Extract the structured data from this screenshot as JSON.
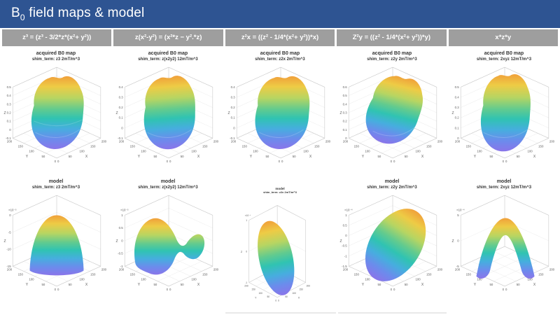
{
  "title": {
    "prefix": "B",
    "sub": "0",
    "rest": " field maps & model"
  },
  "colors": {
    "titlebar_bg": "#2e5492",
    "header_bg": "#9e9e9e",
    "header_text": "#ffffff",
    "page_bg": "#ffffff",
    "axis_line": "#c9c9c9",
    "grid_line": "#ececec",
    "tick_text": "#5a5a5a",
    "surface_top": "#f0a03a",
    "surface_mid": "#30c3b2",
    "surface_bottom": "#8a75ea"
  },
  "headers": [
    "z³  = (z³ - 3/2*z*(x²+ y²))",
    "z(x²-y²) = (x²*z − y².*z)",
    "z²x = ((z² - 1/4*(x²+ y²))*x)",
    "Z²y = ((z² - 1/4*(x²+ y²))*y)",
    "x*z*y"
  ],
  "chart_data": [
    {
      "type": "3d-surface",
      "shape": "head-blob",
      "title": "acquired B0 map",
      "subtitle": "shim_term: z3  2mT/m^3",
      "xlabel": "X",
      "ylabel": "Y",
      "zlabel": "Z",
      "z_exp": "",
      "xlim": [
        0,
        200
      ],
      "ylim": [
        0,
        200
      ],
      "xticks": [
        "0",
        "50",
        "100",
        "150",
        "200"
      ],
      "yticks": [
        "200",
        "150",
        "100",
        "50",
        "0"
      ],
      "zticks": [
        "0.5",
        "0.4",
        "0.3",
        "0.2",
        "0.1",
        "0",
        "-0.1"
      ]
    },
    {
      "type": "3d-surface",
      "shape": "head-blob",
      "title": "acquired B0 map",
      "subtitle": "shim_term: z(x2y2)  12mT/m^3",
      "xlabel": "X",
      "ylabel": "Y",
      "zlabel": "Z",
      "z_exp": "",
      "xlim": [
        0,
        200
      ],
      "ylim": [
        0,
        200
      ],
      "xticks": [
        "0",
        "50",
        "100",
        "150",
        "200"
      ],
      "yticks": [
        "200",
        "150",
        "100",
        "50",
        "0"
      ],
      "zticks": [
        "0.4",
        "0.3",
        "0.2",
        "0.1",
        "0",
        "-0.1"
      ]
    },
    {
      "type": "3d-surface",
      "shape": "head-blob",
      "title": "acquired B0 map",
      "subtitle": "shim_term: z2x  2mT/m^3",
      "xlabel": "X",
      "ylabel": "Y",
      "zlabel": "Z",
      "z_exp": "",
      "xlim": [
        0,
        200
      ],
      "ylim": [
        0,
        200
      ],
      "xticks": [
        "0",
        "50",
        "100",
        "150",
        "200"
      ],
      "yticks": [
        "200",
        "150",
        "100",
        "50",
        "0"
      ],
      "zticks": [
        "0.4",
        "0.3",
        "0.2",
        "0.1",
        "0",
        "-0.1"
      ]
    },
    {
      "type": "3d-surface",
      "shape": "head-blob-tilted",
      "title": "acquired B0 map",
      "subtitle": "shim_term: z2y  2mT/m^3",
      "xlabel": "X",
      "ylabel": "Y",
      "zlabel": "Z",
      "z_exp": "",
      "xlim": [
        0,
        200
      ],
      "ylim": [
        0,
        200
      ],
      "xticks": [
        "0",
        "50",
        "100",
        "150",
        "200"
      ],
      "yticks": [
        "200",
        "150",
        "100",
        "50",
        "0"
      ],
      "zticks": [
        "0.6",
        "0.5",
        "0.4",
        "0.3",
        "0.2",
        "0.1",
        "0"
      ]
    },
    {
      "type": "3d-surface",
      "shape": "head-blob-tall",
      "title": "acquired B0 map",
      "subtitle": "shim_term: 2xyz  12mT/m^3",
      "xlabel": "X",
      "ylabel": "Y",
      "zlabel": "Z",
      "z_exp": "",
      "xlim": [
        0,
        200
      ],
      "ylim": [
        0,
        200
      ],
      "xticks": [
        "0",
        "50",
        "100",
        "150",
        "200"
      ],
      "yticks": [
        "200",
        "150",
        "100",
        "50",
        "0"
      ],
      "zticks": [
        "0.5",
        "0.4",
        "0.3",
        "0.2",
        "0.1",
        "0"
      ]
    },
    {
      "type": "3d-surface",
      "shape": "dome",
      "title": "model",
      "subtitle": "shim_term: z3  2mT/m^3",
      "xlabel": "X",
      "ylabel": "Y",
      "zlabel": "Z",
      "z_exp": "×10⁻⁵",
      "xlim": [
        0,
        200
      ],
      "ylim": [
        0,
        200
      ],
      "xticks": [
        "0",
        "50",
        "100",
        "150",
        "200"
      ],
      "yticks": [
        "200",
        "150",
        "100",
        "50",
        "0"
      ],
      "zticks": [
        "0",
        "-5",
        "-10",
        "-15"
      ]
    },
    {
      "type": "3d-surface",
      "shape": "saddle",
      "title": "model",
      "subtitle": "shim_term: z(x2y2)  12mT/m^3",
      "xlabel": "X",
      "ylabel": "Y",
      "zlabel": "Z",
      "z_exp": "×10⁻⁵",
      "xlim": [
        0,
        200
      ],
      "ylim": [
        0,
        200
      ],
      "xticks": [
        "0",
        "50",
        "100",
        "150",
        "200"
      ],
      "yticks": [
        "200",
        "150",
        "100",
        "50",
        "0"
      ],
      "zticks": [
        "1",
        "0.5",
        "0",
        "-0.5",
        "-1"
      ]
    },
    {
      "type": "3d-surface",
      "shape": "tilted-ellipse-narrow",
      "title": "model",
      "subtitle": "shim_term: z2x  2mT/m^3",
      "xlabel": "X",
      "ylabel": "Y",
      "zlabel": "Z",
      "z_exp": "×10⁻⁴",
      "xlim": [
        0,
        200
      ],
      "ylim": [
        0,
        200
      ],
      "xticks": [
        "0",
        "50",
        "100",
        "150",
        "200"
      ],
      "yticks": [
        "200",
        "150",
        "100",
        "50",
        "0"
      ],
      "zticks": [
        "1",
        "0",
        "-1"
      ]
    },
    {
      "type": "3d-surface",
      "shape": "tilted-ellipse",
      "title": "model",
      "subtitle": "shim_term: z2y  2mT/m^3",
      "xlabel": "X",
      "ylabel": "Y",
      "zlabel": "Z",
      "z_exp": "×10⁻⁴",
      "xlim": [
        0,
        200
      ],
      "ylim": [
        0,
        200
      ],
      "xticks": [
        "0",
        "50",
        "100",
        "150",
        "200"
      ],
      "yticks": [
        "200",
        "150",
        "100",
        "50",
        "0"
      ],
      "zticks": [
        "1",
        "0.5",
        "0",
        "-0.5",
        "-1",
        "-1.5"
      ]
    },
    {
      "type": "3d-surface",
      "shape": "arch",
      "title": "model",
      "subtitle": "shim_term: 2xyz  12mT/m^3",
      "xlabel": "X",
      "ylabel": "Y",
      "zlabel": "Z",
      "z_exp": "×10⁻⁴",
      "xlim": [
        0,
        200
      ],
      "ylim": [
        0,
        200
      ],
      "xticks": [
        "0",
        "50",
        "100",
        "150",
        "200"
      ],
      "yticks": [
        "200",
        "150",
        "100",
        "50",
        "0"
      ],
      "zticks": [
        "5",
        "0",
        "-5"
      ]
    }
  ]
}
